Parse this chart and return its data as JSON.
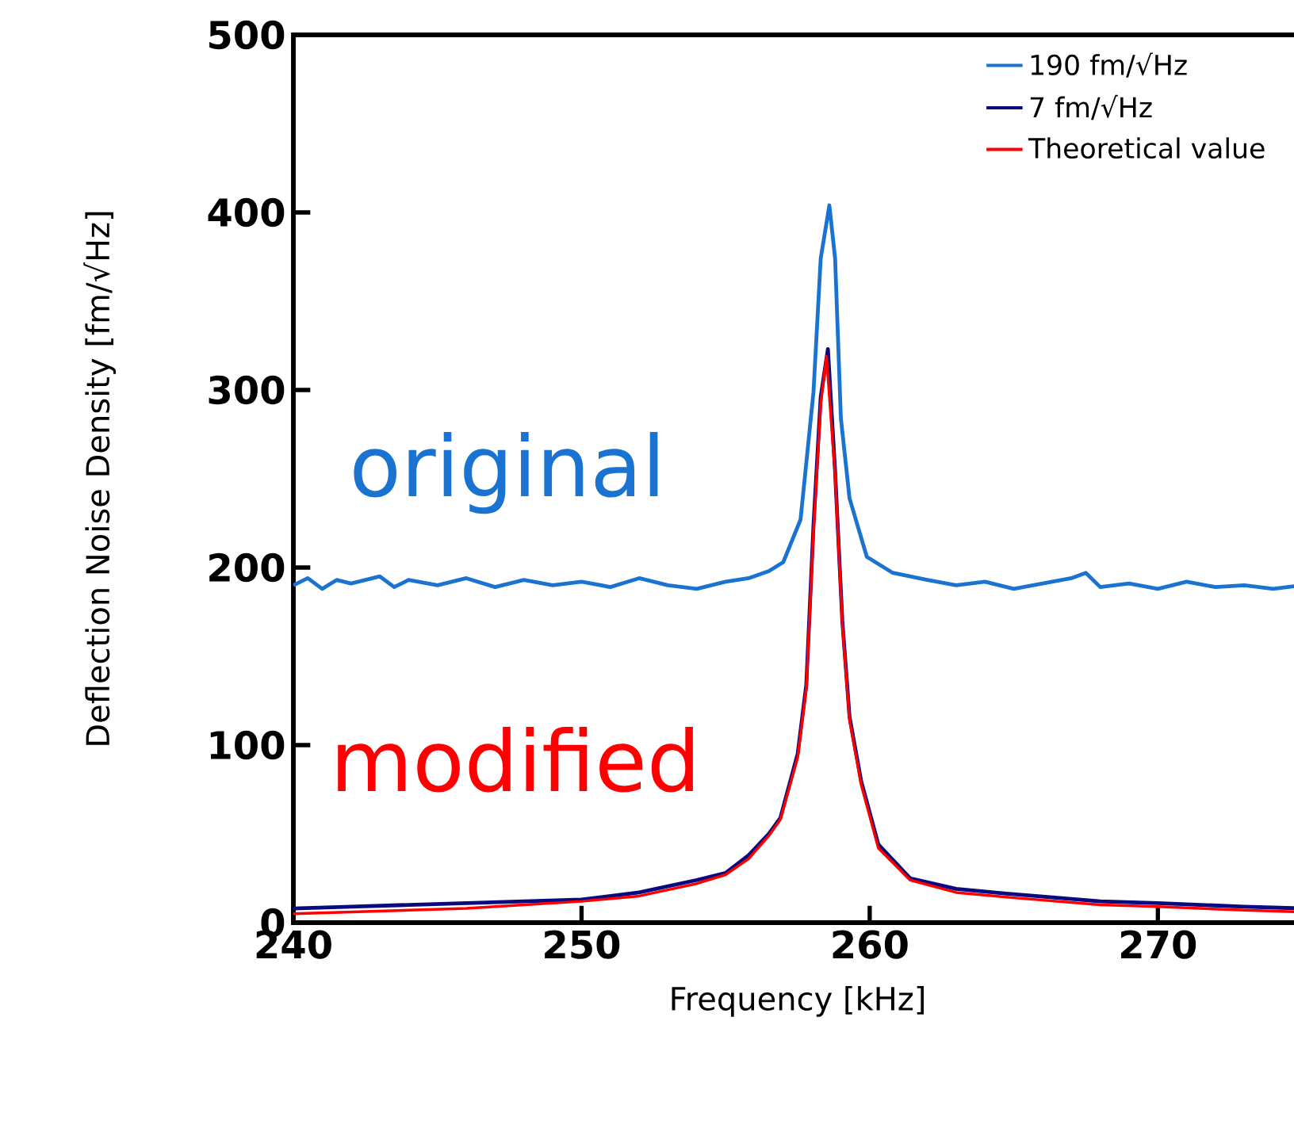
{
  "chart_data": {
    "type": "line",
    "xlabel": "Frequency  [kHz]",
    "ylabel": "Deflection Noise Density  [fm/√Hz]",
    "xlim": [
      240,
      275
    ],
    "ylim": [
      0,
      500
    ],
    "xticks": [
      240,
      250,
      260,
      270
    ],
    "yticks": [
      0,
      100,
      200,
      300,
      400,
      500
    ],
    "legend": "top right",
    "grid": false,
    "marker": "none",
    "line_style": "solid",
    "annotations": [
      "original",
      "modified"
    ],
    "series": [
      {
        "name": "190 fm/√Hz",
        "color": "#1a73d0",
        "x": [
          240,
          240.5,
          241,
          241.5,
          242,
          243,
          243.5,
          244,
          245,
          246,
          247,
          248,
          249,
          250,
          251,
          252,
          253,
          254,
          255,
          255.8,
          256.5,
          257,
          257.6,
          258.05,
          258.3,
          258.6,
          258.8,
          259,
          259.3,
          259.9,
          260.8,
          262,
          263,
          264,
          265,
          266,
          267,
          267.5,
          268,
          269,
          270,
          271,
          272,
          273,
          274,
          275
        ],
        "values": [
          190,
          194,
          188,
          193,
          191,
          195,
          189,
          193,
          190,
          194,
          189,
          193,
          190,
          192,
          189,
          194,
          190,
          188,
          192,
          194,
          198,
          203,
          227,
          299,
          374,
          404,
          374,
          284,
          239,
          206,
          197,
          193,
          190,
          192,
          188,
          191,
          194,
          197,
          189,
          191,
          188,
          192,
          189,
          190,
          188,
          190
        ]
      },
      {
        "name": "7 fm/√Hz",
        "color": "#0a0a80",
        "x": [
          240,
          242,
          244,
          246,
          248,
          250,
          252,
          254,
          255,
          255.8,
          256.5,
          256.9,
          257.5,
          257.8,
          258.05,
          258.3,
          258.55,
          258.8,
          259.05,
          259.3,
          259.7,
          260.3,
          261.4,
          263,
          265,
          268,
          270,
          273,
          275
        ],
        "values": [
          8,
          9,
          10,
          11,
          12,
          13,
          17,
          24,
          28,
          38,
          50,
          59,
          95,
          134,
          224,
          296,
          323,
          254,
          170,
          116,
          80,
          44,
          25,
          19,
          16,
          12,
          11,
          9,
          8
        ]
      },
      {
        "name": "Theoretical value",
        "color": "#ff0000",
        "x": [
          240,
          242,
          244,
          246,
          248,
          250,
          252,
          254,
          255,
          255.8,
          256.5,
          256.9,
          257.5,
          257.8,
          258.05,
          258.3,
          258.5,
          258.8,
          259.05,
          259.3,
          259.7,
          260.3,
          261.4,
          263,
          265,
          268,
          270,
          273,
          275
        ],
        "values": [
          5,
          6,
          7,
          8,
          10,
          12,
          15,
          22,
          27,
          36,
          49,
          58,
          93,
          132,
          220,
          292,
          319,
          252,
          168,
          114,
          78,
          42,
          24,
          17,
          14,
          10,
          9,
          7,
          6
        ]
      }
    ]
  }
}
